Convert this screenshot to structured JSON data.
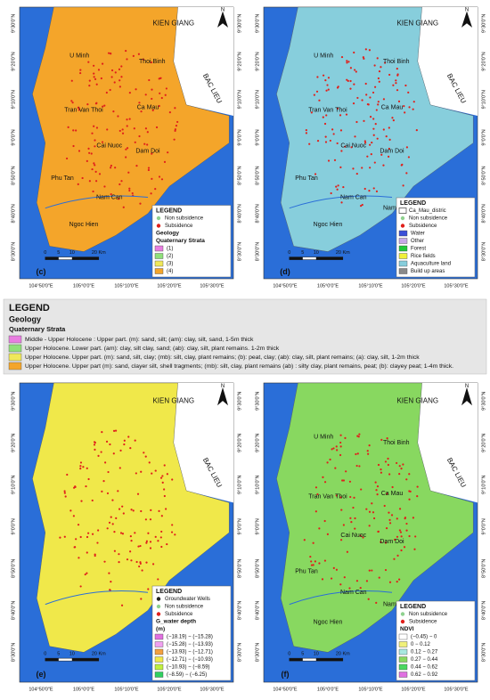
{
  "lat_ticks": [
    "9°30'0\"N",
    "9°20'0\"N",
    "9°10'0\"N",
    "9°0'0\"N",
    "8°50'0\"N",
    "8°40'0\"N",
    "8°30'0\"N"
  ],
  "lon_ticks": [
    "104°50'0\"E",
    "105°0'0\"E",
    "105°10'0\"E",
    "105°20'0\"E",
    "105°30'0\"E"
  ],
  "panels": [
    {
      "label": "(c)",
      "north": "N",
      "scale": [
        "0",
        "5",
        "10",
        "20 Km"
      ],
      "places": [
        "KIEN GIANG",
        "BAC LIEU",
        "U Minh",
        "Thoi Binh",
        "Tran Van Thoi",
        "Ca Mau",
        "Cai Nuoc",
        "Dam Doi",
        "Phu Tan",
        "Nam Can",
        "Ngoc Hien"
      ],
      "legend": {
        "title": "LEGEND",
        "points": [
          {
            "label": "Non subsidence",
            "color": "#8fd18f"
          },
          {
            "label": "Subsidence",
            "color": "#e0201b"
          }
        ],
        "heading": [
          "Geology",
          "Quaternary Strata"
        ],
        "classes": [
          {
            "label": "(1)",
            "color": "#e87ee0"
          },
          {
            "label": "(2)",
            "color": "#8fe07a"
          },
          {
            "label": "(3)",
            "color": "#f0e85a"
          },
          {
            "label": "(4)",
            "color": "#f4a52a"
          }
        ]
      }
    },
    {
      "label": "(d)",
      "north": "N",
      "scale": [
        "0",
        "5",
        "10",
        "20 Km"
      ],
      "places": [
        "KIEN GIANG",
        "BAC LIEU",
        "U Minh",
        "Thoi Binh",
        "Tran Van Thoi",
        "Ca Mau",
        "Cai Nuoc",
        "Dam Doi",
        "Phu Tan",
        "Nam Can",
        "Ngoc Hien",
        "Nam Can"
      ],
      "legend": {
        "title": "LEGEND",
        "points": [
          {
            "label": "Ca_Mau_distric",
            "color": "#555555"
          },
          {
            "label": "Non subsidence",
            "color": "#8fd18f"
          },
          {
            "label": "Subsidence",
            "color": "#e0201b"
          }
        ],
        "heading": [],
        "classes": [
          {
            "label": "Water",
            "color": "#3b4fd8"
          },
          {
            "label": "Other",
            "color": "#c8a8e8"
          },
          {
            "label": "Forest",
            "color": "#22c83a"
          },
          {
            "label": "Rice fields",
            "color": "#f0f03a"
          },
          {
            "label": "Aquaculture land",
            "color": "#87cedc"
          },
          {
            "label": "Build up areas",
            "color": "#8a8a8a"
          }
        ]
      }
    },
    {
      "label": "(e)",
      "north": "N",
      "scale": [
        "0",
        "5",
        "10",
        "20 Km"
      ],
      "places": [
        "KIEN GIANG",
        "BAC LIEU"
      ],
      "legend": {
        "title": "LEGEND",
        "points": [
          {
            "label": "Groundwater Wells",
            "color": "#222222"
          },
          {
            "label": "Non subsidence",
            "color": "#8fd18f"
          },
          {
            "label": "Subsidence",
            "color": "#e0201b"
          }
        ],
        "heading": [
          "G_water depth",
          "(m)"
        ],
        "classes": [
          {
            "label": "(−18.19) − (−15.28)",
            "color": "#e070e0"
          },
          {
            "label": "(−15.28) − (−13.93)",
            "color": "#f0a0f0"
          },
          {
            "label": "(−13.93) − (−12.71)",
            "color": "#f4a040"
          },
          {
            "label": "(−12.71) − (−10.93)",
            "color": "#f0e84a"
          },
          {
            "label": "(−10.93) − (−8.59)",
            "color": "#c0f040"
          },
          {
            "label": "(−8.59) − (−6.25)",
            "color": "#30d060"
          }
        ]
      }
    },
    {
      "label": "(f)",
      "north": "N",
      "scale": [
        "0",
        "5",
        "10",
        "20 Km"
      ],
      "places": [
        "KIEN GIANG",
        "BAC LIEU",
        "U Minh",
        "Thoi Binh",
        "Tran Van Thoi",
        "Ca Mau",
        "Cai Nuoc",
        "Dam Doi",
        "Phu Tan",
        "Nam Can",
        "Ngoc Hien",
        "Nam Can"
      ],
      "legend": {
        "title": "LEGEND",
        "points": [
          {
            "label": "Non subsidence",
            "color": "#8fd18f"
          },
          {
            "label": "Subsidence",
            "color": "#e0201b"
          }
        ],
        "heading": [
          "NDVI"
        ],
        "classes": [
          {
            "label": "(−0.45) − 0",
            "color": "#ffffff"
          },
          {
            "label": "0 − 0.12",
            "color": "#f0f07a"
          },
          {
            "label": "0.12 − 0.27",
            "color": "#a8e8e0"
          },
          {
            "label": "0.27 − 0.44",
            "color": "#88d860"
          },
          {
            "label": "0.44 − 0.62",
            "color": "#4ad860"
          },
          {
            "label": "0.62 − 0.92",
            "color": "#e070e0"
          }
        ]
      }
    }
  ],
  "geology_legend": {
    "title": "LEGEND",
    "heading": "Geology",
    "subheading": "Quaternary Strata",
    "items": [
      {
        "label": "Middle - Upper Holocene :  Upper part. (m): sand, silt; (am): clay, silt, sand, 1-5m thick",
        "color": "#e87ee0"
      },
      {
        "label": "Upper  Holocene. Lower part. (am): clay, silt clay, sand; (ab): clay, silt, plant remains. 1-2m thick",
        "color": "#8fe07a"
      },
      {
        "label": "Upper Holocene. Upper part. (m): sand, silt, clay; (mb): silt, clay, plant remains; (b): peat, clay; (ab): clay, silt, plant remains; (a): clay, silt, 1-2m thick",
        "color": "#f0e85a"
      },
      {
        "label": "Upper Holocene. Upper part (m): sand, clayer silt, shell tragments; (mb): silt, clay, plant remains (ab) : silty clay, plant remains, peat; (b): clayey peat; 1-4m thick.",
        "color": "#f4a52a"
      }
    ]
  }
}
